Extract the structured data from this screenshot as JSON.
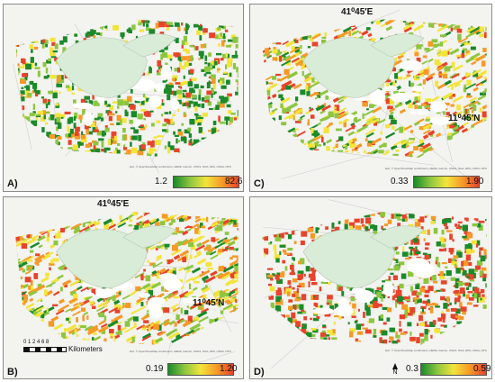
{
  "panels": [
    {
      "id": "A",
      "label": "A)",
      "legend": {
        "min": "1.2",
        "max": "82.6"
      }
    },
    {
      "id": "B",
      "label": "B)",
      "legend": {
        "min": "0.19",
        "max": "1.20"
      },
      "coords": {
        "lon": "41⁰45′E",
        "lat": "11⁰45′N"
      },
      "scalebar": {
        "ticks": "0 1 2   4   6   8",
        "units": "Kilometers"
      }
    },
    {
      "id": "C",
      "label": "C)",
      "legend": {
        "min": "0.33",
        "max": "1.90"
      },
      "coords": {
        "lon": "41⁰45′E",
        "lat": "11⁰45′N"
      }
    },
    {
      "id": "D",
      "label": "D)",
      "legend": {
        "min": "0.3",
        "max": "0.59"
      },
      "north": "N"
    }
  ],
  "attribution": "Esri, © OpenStreetMap contributors, HERE, Garmin, USGS, NGA, EPA, USDA, NPS",
  "colors": {
    "low": "#1a8a2a",
    "mid1": "#8cc640",
    "mid2": "#f3e43a",
    "mid3": "#f59a27",
    "high": "#e8432b",
    "lake": "#d8ecd8",
    "base": "#f3f3f0"
  }
}
